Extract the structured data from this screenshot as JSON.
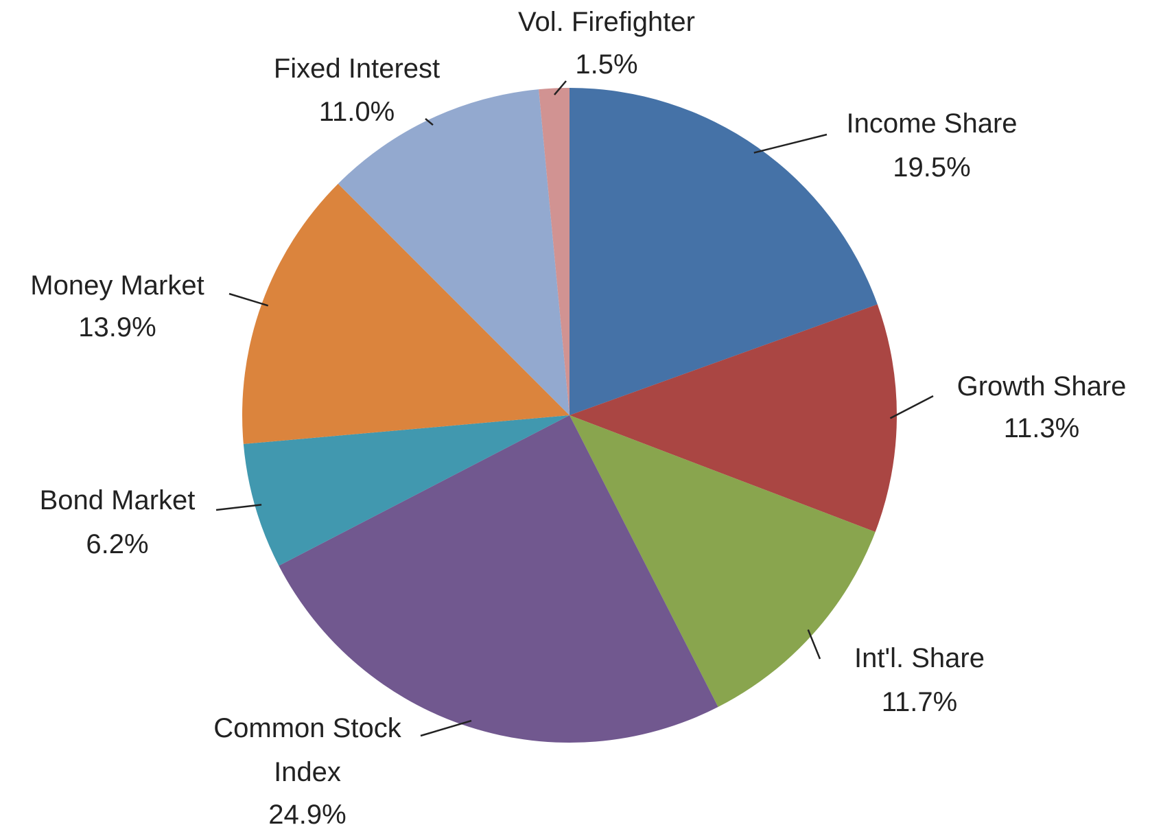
{
  "chart_data": {
    "type": "pie",
    "categories": [
      "Income Share",
      "Growth Share",
      "Int'l. Share",
      "Common Stock Index",
      "Bond Market",
      "Money Market",
      "Fixed Interest",
      "Vol. Firefighter"
    ],
    "values": [
      19.5,
      11.3,
      11.7,
      24.9,
      6.2,
      13.9,
      11.0,
      1.5
    ],
    "value_labels": [
      "19.5%",
      "11.3%",
      "11.7%",
      "24.9%",
      "6.2%",
      "13.9%",
      "11.0%",
      "1.5%"
    ],
    "colors": [
      "#4572a7",
      "#aa4643",
      "#89a54e",
      "#71588f",
      "#4198af",
      "#db843d",
      "#93a9cf",
      "#d19392"
    ]
  }
}
